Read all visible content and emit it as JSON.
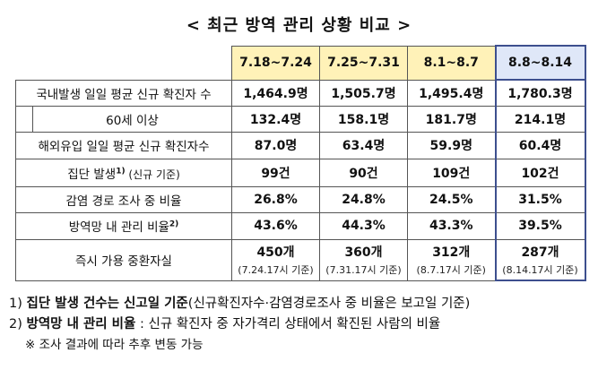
{
  "title": "< 최근 방역 관리 상황 비교 >",
  "columns": [
    "7.18~7.24",
    "7.25~7.31",
    "8.1~8.7",
    "8.8~8.14"
  ],
  "rows": [
    {
      "label": "국내발생 일일 평균 신규 확진자 수",
      "values": [
        "1,464.9명",
        "1,505.7명",
        "1,495.4명",
        "1,780.3명"
      ]
    },
    {
      "label": "60세 이상",
      "values": [
        "132.4명",
        "158.1명",
        "181.7명",
        "214.1명"
      ]
    },
    {
      "label": "해외유입 일일 평균 신규 확진자수",
      "values": [
        "87.0명",
        "63.4명",
        "59.9명",
        "60.4명"
      ]
    },
    {
      "label_main": "집단 발생",
      "label_sup": "1)",
      "label_small": " (신규 기준)",
      "values": [
        "99건",
        "90건",
        "109건",
        "102건"
      ]
    },
    {
      "label": "감염 경로 조사 중 비율",
      "values": [
        "26.8%",
        "24.8%",
        "24.5%",
        "31.5%"
      ]
    },
    {
      "label_main": "방역망 내 관리 비율",
      "label_sup": "2)",
      "values": [
        "43.6%",
        "44.3%",
        "43.3%",
        "39.5%"
      ]
    },
    {
      "label": "즉시 가용 중환자실",
      "values": [
        "450개",
        "360개",
        "312개",
        "287개"
      ],
      "subs": [
        "(7.24.17시 기준)",
        "(7.31.17시 기준)",
        "(8.7.17시 기준)",
        "(8.14.17시 기준)"
      ]
    }
  ],
  "notes": {
    "note1_num": "1) ",
    "note1_bold": "집단 발생 건수는 신고일 기준",
    "note1_rest": "(신규확진자수·감염경로조사 중 비율은 보고일 기준)",
    "note2_num": "2) ",
    "note2_bold": "방역망 내 관리 비율",
    "note2_rest": " : 신규 확진자 중 자가격리 상태에서 확진된 사람의 비율",
    "note3": "※ 조사 결과에 따라 추후 변동 가능"
  },
  "colors": {
    "header_bg": "#fff2b8",
    "current_header_bg": "#dfe7f8",
    "current_border": "#3d4f8e"
  }
}
